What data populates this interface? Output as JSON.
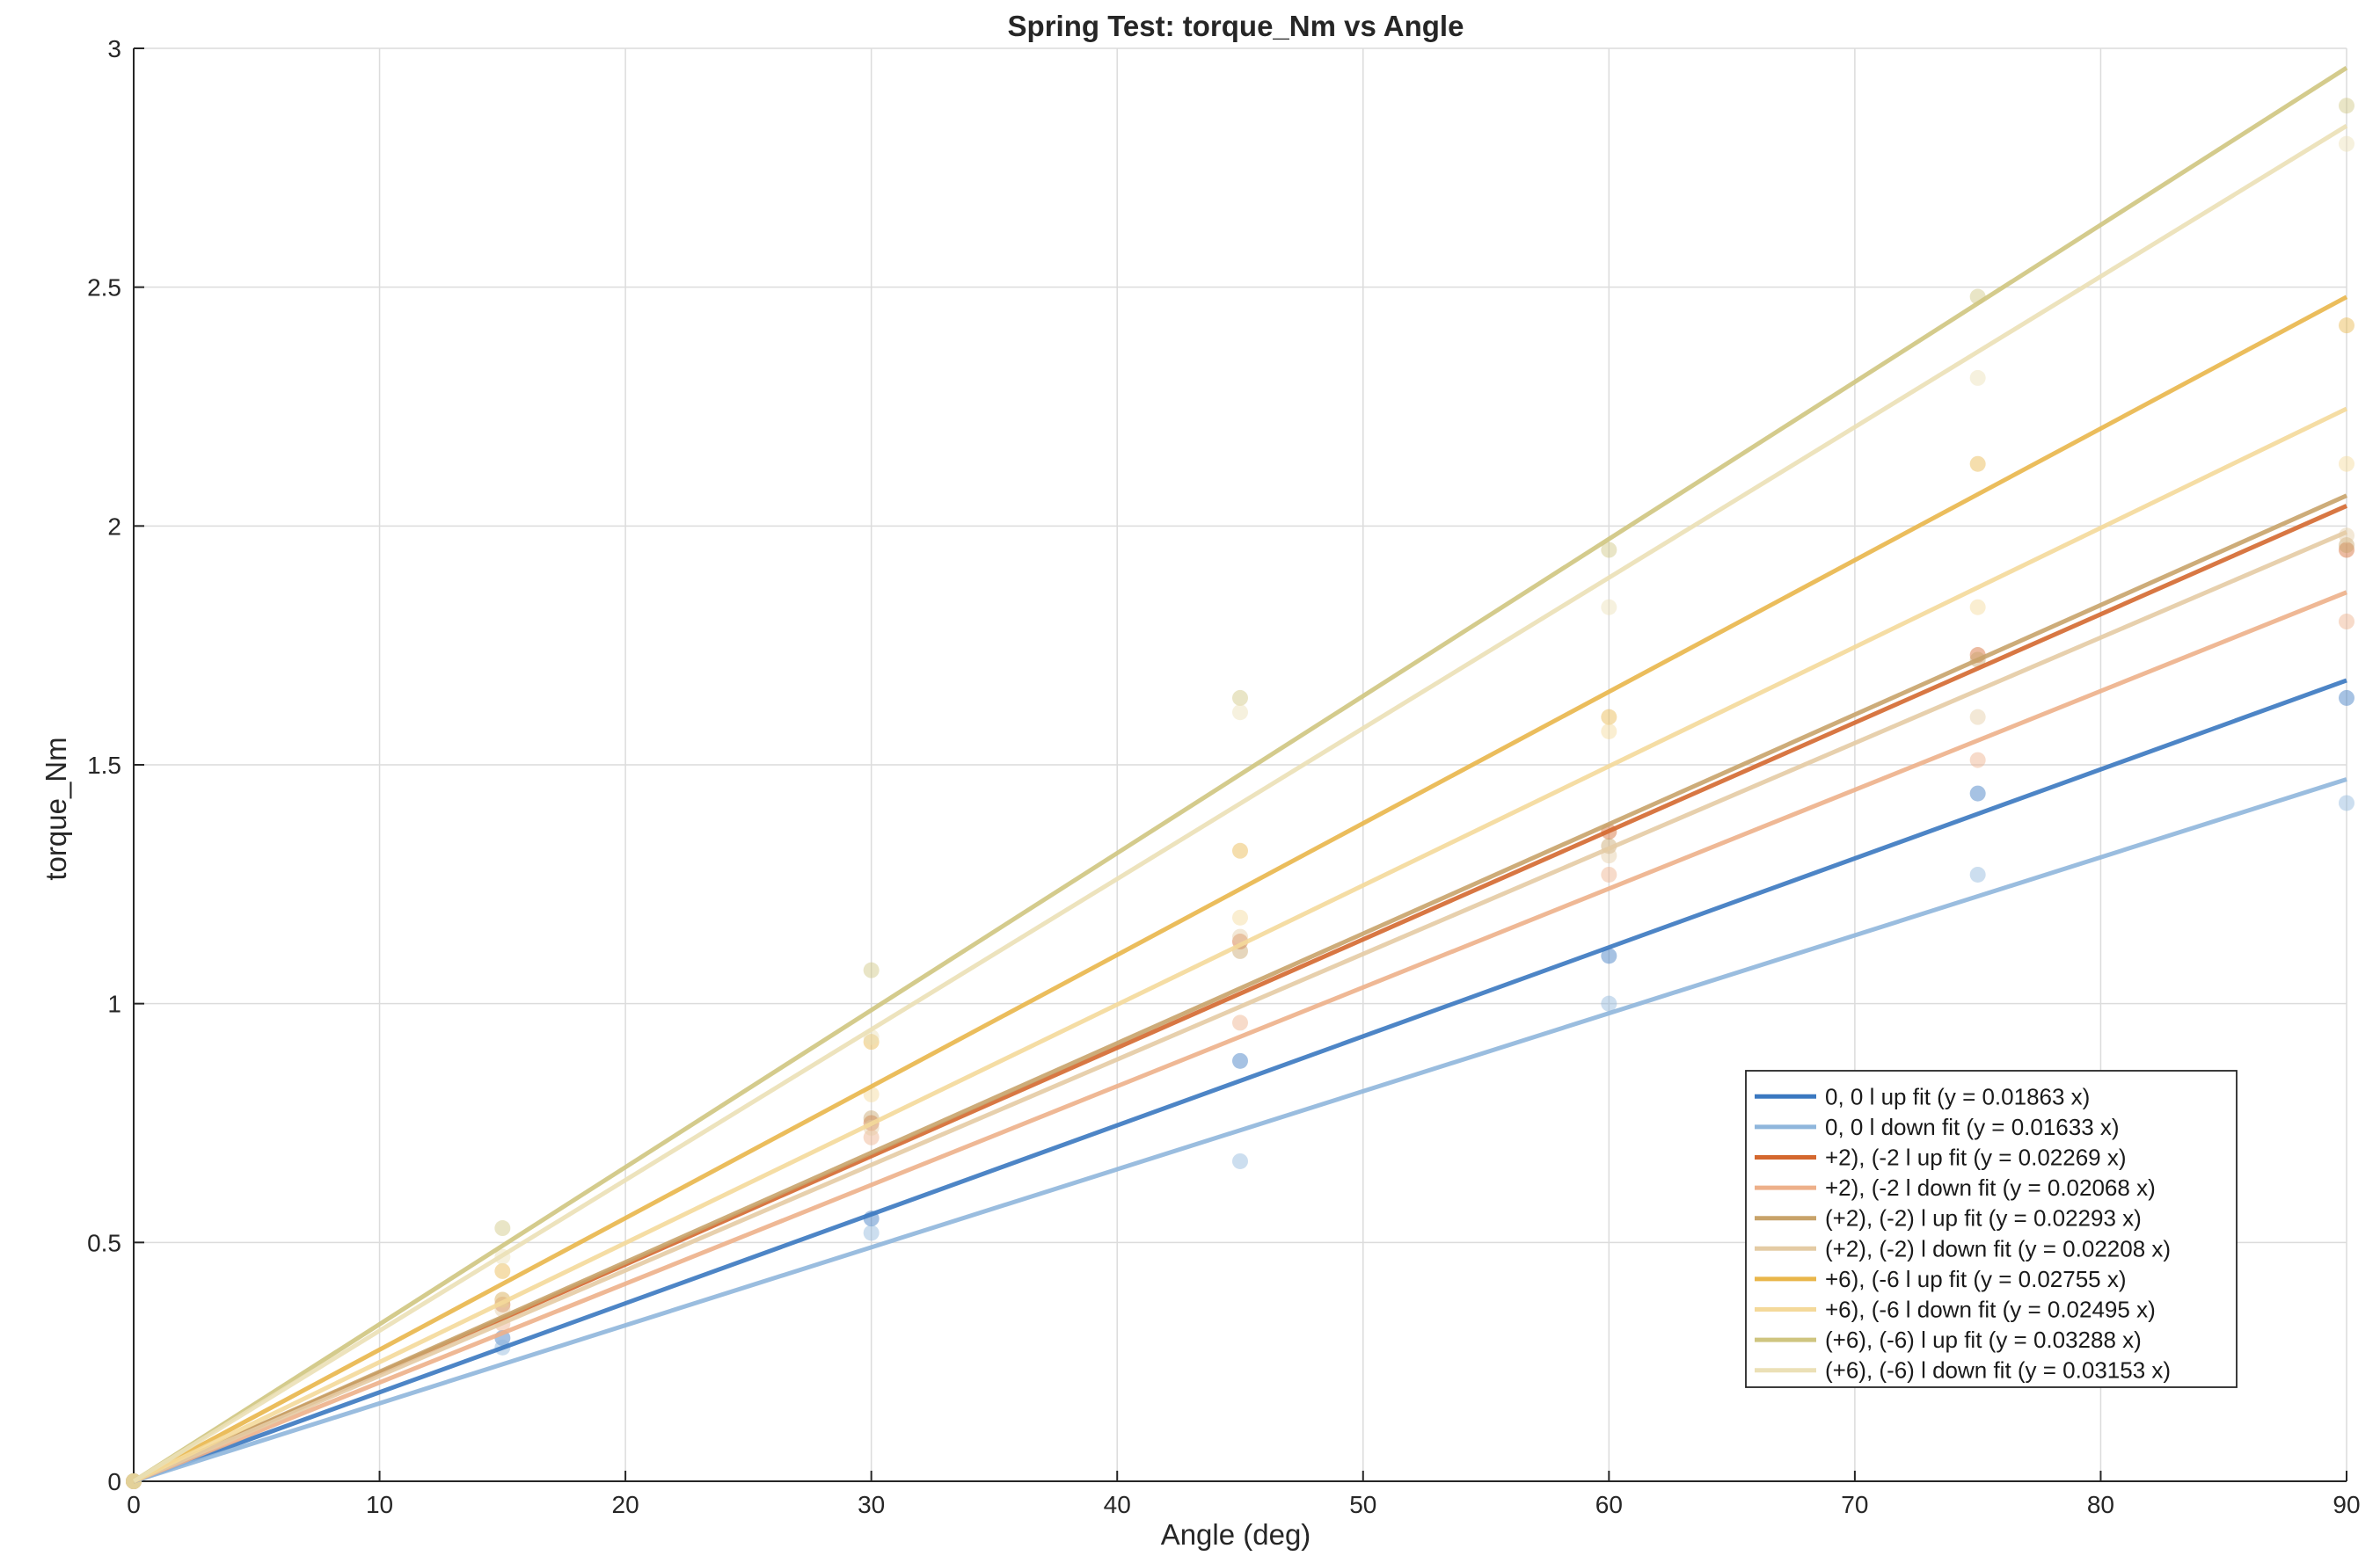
{
  "chart_data": {
    "type": "scatter",
    "title": "Spring Test: torque_Nm vs Angle",
    "xlabel": "Angle (deg)",
    "ylabel": "torque_Nm",
    "xlim": [
      0,
      90
    ],
    "ylim": [
      0,
      3
    ],
    "xticks": [
      0,
      10,
      20,
      30,
      40,
      50,
      60,
      70,
      80,
      90
    ],
    "yticks": [
      0,
      0.5,
      1,
      1.5,
      2,
      2.5,
      3
    ],
    "ytick_labels": [
      "0",
      "0.5",
      "1",
      "1.5",
      "2",
      "2.5",
      "3"
    ],
    "grid": true,
    "legend_position": "bottom-right",
    "series": [
      {
        "name": "0, 0 l up fit (y = 0.01863 x)",
        "slope": 0.01863,
        "color": "#3a78c0",
        "opacity": 1.0,
        "points": [
          [
            0,
            0
          ],
          [
            15,
            0.3
          ],
          [
            30,
            0.55
          ],
          [
            45,
            0.88
          ],
          [
            60,
            1.1
          ],
          [
            75,
            1.44
          ],
          [
            90,
            1.64
          ]
        ]
      },
      {
        "name": "0, 0 l down fit (y = 0.01633 x)",
        "slope": 0.01633,
        "color": "#8fb6dc",
        "opacity": 1.0,
        "points": [
          [
            0,
            0
          ],
          [
            15,
            0.28
          ],
          [
            30,
            0.52
          ],
          [
            45,
            0.67
          ],
          [
            60,
            1.0
          ],
          [
            75,
            1.27
          ],
          [
            90,
            1.42
          ]
        ]
      },
      {
        "name": "+2), (-2 l up fit (y = 0.02269 x)",
        "slope": 0.02269,
        "color": "#d4682f",
        "opacity": 1.0,
        "points": [
          [
            0,
            0
          ],
          [
            15,
            0.37
          ],
          [
            30,
            0.75
          ],
          [
            45,
            1.13
          ],
          [
            60,
            1.36
          ],
          [
            75,
            1.73
          ],
          [
            90,
            1.95
          ]
        ]
      },
      {
        "name": "+2), (-2 l down fit (y = 0.02068 x)",
        "slope": 0.02068,
        "color": "#edb08a",
        "opacity": 1.0,
        "points": [
          [
            0,
            0
          ],
          [
            15,
            0.33
          ],
          [
            30,
            0.72
          ],
          [
            45,
            0.96
          ],
          [
            60,
            1.27
          ],
          [
            75,
            1.51
          ],
          [
            90,
            1.8
          ]
        ]
      },
      {
        "name": "(+2), (-2) l up fit (y = 0.02293 x)",
        "slope": 0.02293,
        "color": "#c8a36a",
        "opacity": 1.0,
        "points": [
          [
            0,
            0
          ],
          [
            15,
            0.38
          ],
          [
            30,
            0.76
          ],
          [
            45,
            1.11
          ],
          [
            60,
            1.33
          ],
          [
            75,
            1.72
          ],
          [
            90,
            1.96
          ]
        ]
      },
      {
        "name": "(+2), (-2) l down fit (y = 0.02208 x)",
        "slope": 0.02208,
        "color": "#e4cba4",
        "opacity": 1.0,
        "points": [
          [
            0,
            0
          ],
          [
            15,
            0.36
          ],
          [
            30,
            0.74
          ],
          [
            45,
            1.14
          ],
          [
            60,
            1.31
          ],
          [
            75,
            1.6
          ],
          [
            90,
            1.98
          ]
        ]
      },
      {
        "name": "+6), (-6 l up fit (y = 0.02755 x)",
        "slope": 0.02755,
        "color": "#e9b64a",
        "opacity": 1.0,
        "points": [
          [
            0,
            0
          ],
          [
            15,
            0.44
          ],
          [
            30,
            0.92
          ],
          [
            45,
            1.32
          ],
          [
            60,
            1.6
          ],
          [
            75,
            2.13
          ],
          [
            90,
            2.42
          ]
        ]
      },
      {
        "name": "+6), (-6 l down fit (y = 0.02495 x)",
        "slope": 0.02495,
        "color": "#f4d99a",
        "opacity": 1.0,
        "points": [
          [
            0,
            0
          ],
          [
            15,
            0.38
          ],
          [
            30,
            0.81
          ],
          [
            45,
            1.18
          ],
          [
            60,
            1.57
          ],
          [
            75,
            1.83
          ],
          [
            90,
            2.13
          ]
        ]
      },
      {
        "name": "(+6), (-6) l up fit (y = 0.03288 x)",
        "slope": 0.03288,
        "color": "#cfc580",
        "opacity": 1.0,
        "points": [
          [
            0,
            0
          ],
          [
            15,
            0.53
          ],
          [
            30,
            1.07
          ],
          [
            45,
            1.64
          ],
          [
            60,
            1.95
          ],
          [
            75,
            2.48
          ],
          [
            90,
            2.88
          ]
        ]
      },
      {
        "name": "(+6), (-6) l down fit (y = 0.03153 x)",
        "slope": 0.03153,
        "color": "#ebe0b6",
        "opacity": 1.0,
        "points": [
          [
            0,
            0
          ],
          [
            15,
            0.47
          ],
          [
            30,
            0.93
          ],
          [
            45,
            1.61
          ],
          [
            60,
            1.83
          ],
          [
            75,
            2.31
          ],
          [
            90,
            2.8
          ]
        ]
      }
    ]
  }
}
